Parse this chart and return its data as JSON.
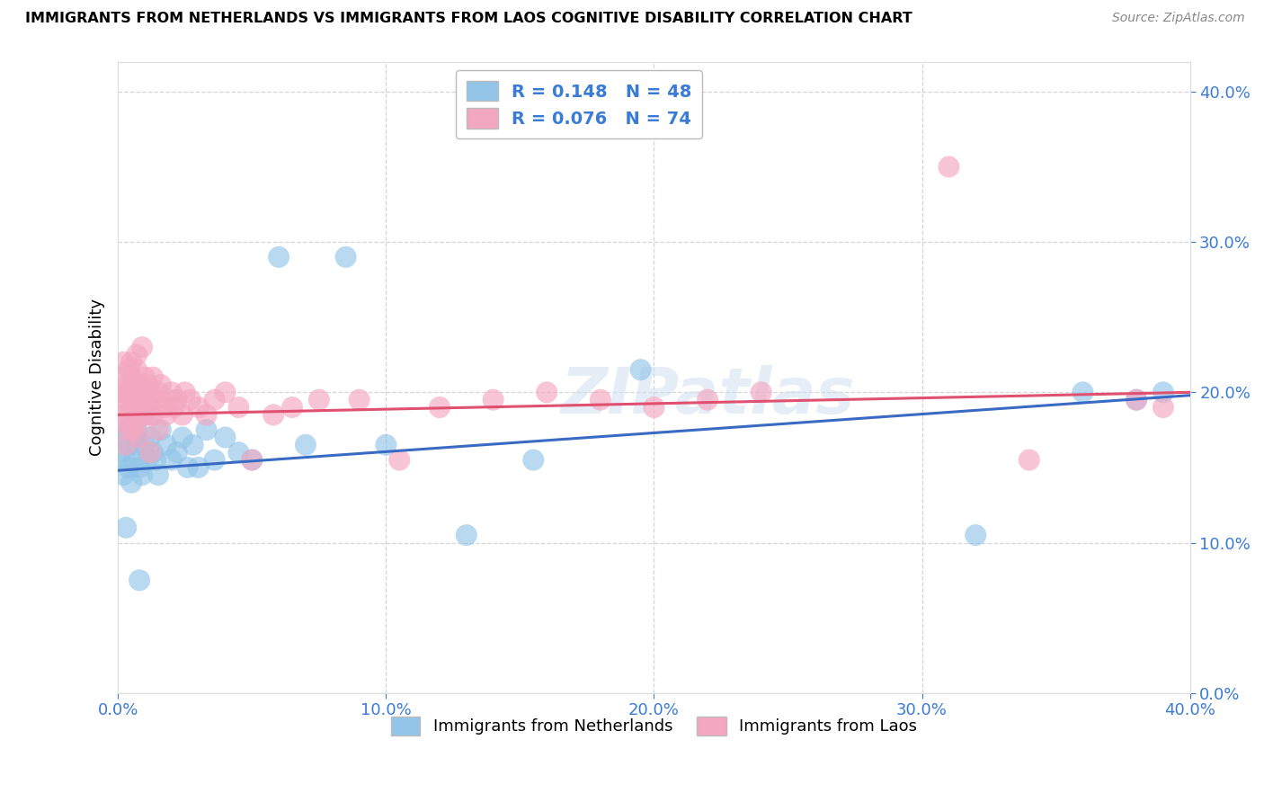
{
  "title": "IMMIGRANTS FROM NETHERLANDS VS IMMIGRANTS FROM LAOS COGNITIVE DISABILITY CORRELATION CHART",
  "source": "Source: ZipAtlas.com",
  "ylabel": "Cognitive Disability",
  "xlabel": "",
  "xlim": [
    0.0,
    0.4
  ],
  "ylim": [
    0.0,
    0.42
  ],
  "ytick_vals": [
    0.0,
    0.1,
    0.2,
    0.3,
    0.4
  ],
  "xtick_vals": [
    0.0,
    0.1,
    0.2,
    0.3,
    0.4
  ],
  "legend_labels": [
    "Immigrants from Netherlands",
    "Immigrants from Laos"
  ],
  "r_netherlands": 0.148,
  "n_netherlands": 48,
  "r_laos": 0.076,
  "n_laos": 74,
  "color_netherlands": "#92C5E8",
  "color_laos": "#F4A7C0",
  "line_color_netherlands": "#3A6BC4",
  "line_color_laos": "#E05070",
  "nl_line_x0": 0.0,
  "nl_line_y0": 0.148,
  "nl_line_x1": 0.4,
  "nl_line_y1": 0.198,
  "laos_line_x0": 0.0,
  "laos_line_y0": 0.185,
  "laos_line_x1": 0.4,
  "laos_line_y1": 0.2,
  "nl_x": [
    0.001,
    0.002,
    0.002,
    0.003,
    0.003,
    0.004,
    0.004,
    0.005,
    0.005,
    0.006,
    0.006,
    0.007,
    0.007,
    0.008,
    0.009,
    0.01,
    0.01,
    0.011,
    0.012,
    0.013,
    0.014,
    0.015,
    0.016,
    0.018,
    0.02,
    0.022,
    0.024,
    0.026,
    0.028,
    0.03,
    0.033,
    0.036,
    0.04,
    0.045,
    0.05,
    0.06,
    0.07,
    0.085,
    0.1,
    0.13,
    0.155,
    0.195,
    0.32,
    0.36,
    0.38,
    0.39,
    0.003,
    0.008
  ],
  "nl_y": [
    0.16,
    0.17,
    0.145,
    0.175,
    0.155,
    0.15,
    0.165,
    0.18,
    0.14,
    0.17,
    0.155,
    0.165,
    0.175,
    0.15,
    0.145,
    0.165,
    0.185,
    0.155,
    0.17,
    0.16,
    0.155,
    0.145,
    0.175,
    0.165,
    0.155,
    0.16,
    0.17,
    0.15,
    0.165,
    0.15,
    0.175,
    0.155,
    0.17,
    0.16,
    0.155,
    0.29,
    0.165,
    0.29,
    0.165,
    0.105,
    0.155,
    0.215,
    0.105,
    0.2,
    0.195,
    0.2,
    0.11,
    0.075
  ],
  "laos_x": [
    0.001,
    0.001,
    0.002,
    0.002,
    0.002,
    0.003,
    0.003,
    0.003,
    0.004,
    0.004,
    0.004,
    0.005,
    0.005,
    0.005,
    0.006,
    0.006,
    0.007,
    0.007,
    0.007,
    0.008,
    0.008,
    0.008,
    0.009,
    0.009,
    0.01,
    0.01,
    0.011,
    0.011,
    0.012,
    0.012,
    0.013,
    0.013,
    0.014,
    0.015,
    0.015,
    0.016,
    0.017,
    0.018,
    0.019,
    0.02,
    0.021,
    0.022,
    0.024,
    0.025,
    0.027,
    0.03,
    0.033,
    0.036,
    0.04,
    0.045,
    0.05,
    0.058,
    0.065,
    0.075,
    0.09,
    0.105,
    0.12,
    0.14,
    0.16,
    0.18,
    0.2,
    0.22,
    0.24,
    0.31,
    0.34,
    0.38,
    0.39,
    0.005,
    0.007,
    0.009,
    0.003,
    0.006,
    0.008,
    0.012
  ],
  "laos_y": [
    0.19,
    0.21,
    0.18,
    0.2,
    0.22,
    0.185,
    0.205,
    0.195,
    0.175,
    0.215,
    0.2,
    0.19,
    0.21,
    0.195,
    0.185,
    0.205,
    0.18,
    0.2,
    0.215,
    0.19,
    0.205,
    0.195,
    0.185,
    0.2,
    0.21,
    0.195,
    0.185,
    0.205,
    0.19,
    0.2,
    0.185,
    0.21,
    0.195,
    0.175,
    0.2,
    0.205,
    0.19,
    0.185,
    0.195,
    0.2,
    0.19,
    0.195,
    0.185,
    0.2,
    0.195,
    0.19,
    0.185,
    0.195,
    0.2,
    0.19,
    0.155,
    0.185,
    0.19,
    0.195,
    0.195,
    0.155,
    0.19,
    0.195,
    0.2,
    0.195,
    0.19,
    0.195,
    0.2,
    0.35,
    0.155,
    0.195,
    0.19,
    0.22,
    0.225,
    0.23,
    0.165,
    0.175,
    0.17,
    0.16
  ]
}
